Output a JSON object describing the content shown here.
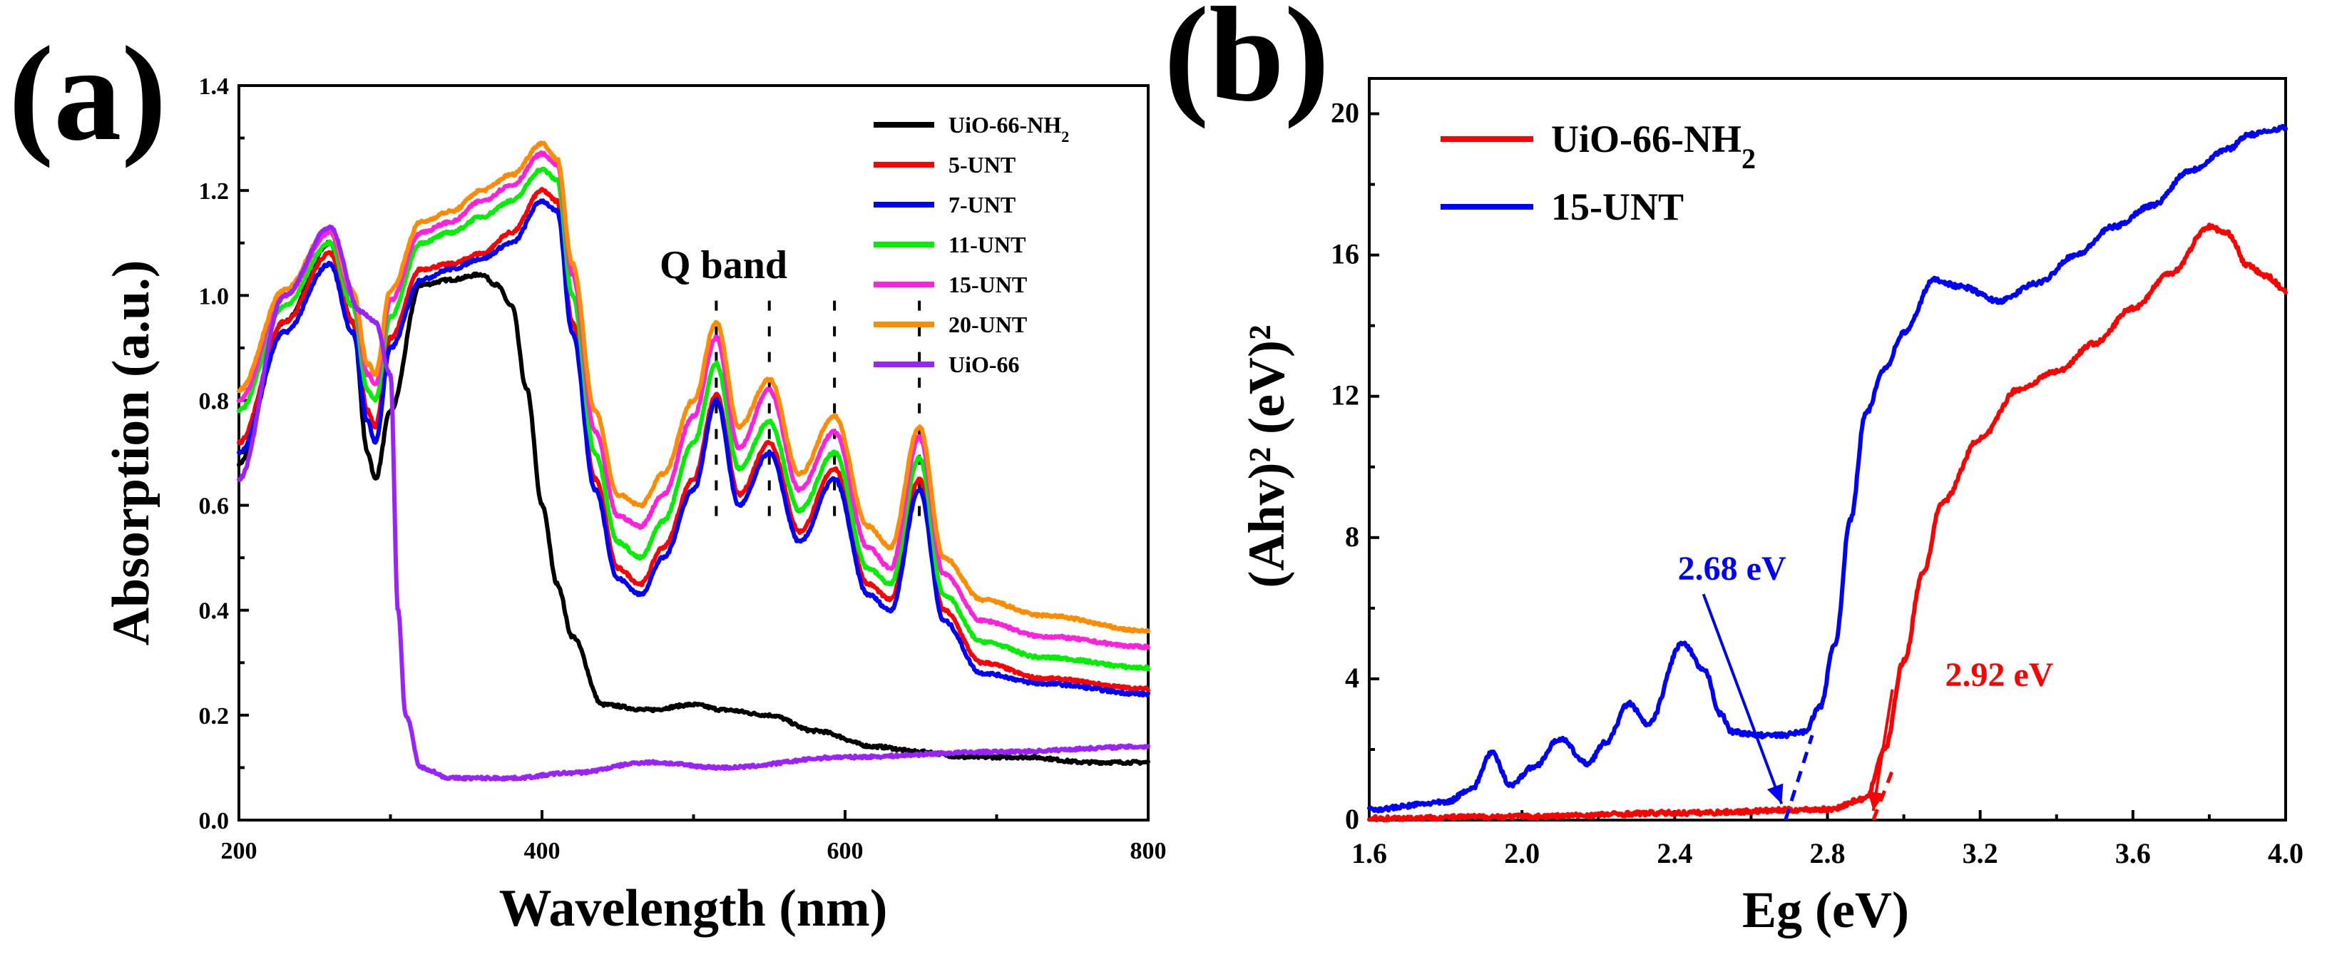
{
  "chart_data": [
    {
      "panel": "(a)",
      "type": "line",
      "xlabel": "Wavelength (nm)",
      "ylabel": "Absorption (a.u.)",
      "xlim": [
        200,
        800
      ],
      "ylim": [
        0.0,
        1.4
      ],
      "xticks": [
        "200",
        "400",
        "600",
        "800"
      ],
      "yticks": [
        "0.0",
        "0.2",
        "0.4",
        "0.6",
        "0.8",
        "1.0",
        "1.2",
        "1.4"
      ],
      "legend_position": "top-right",
      "annotations": [
        {
          "text": "Q band",
          "x": 518,
          "y": 1.05
        }
      ],
      "q_band_markers": [
        515,
        550,
        593,
        649
      ],
      "series": [
        {
          "name": "UiO-66-NH",
          "subscript": "2",
          "color": "#000000",
          "x": [
            200,
            230,
            260,
            275,
            285,
            290,
            300,
            320,
            340,
            360,
            370,
            380,
            390,
            400,
            410,
            420,
            440,
            470,
            500,
            520,
            550,
            580,
            620,
            650,
            680,
            720,
            760,
            800
          ],
          "y": [
            0.68,
            0.95,
            1.1,
            0.95,
            0.7,
            0.65,
            0.78,
            1.02,
            1.03,
            1.04,
            1.02,
            0.98,
            0.82,
            0.6,
            0.45,
            0.35,
            0.22,
            0.21,
            0.22,
            0.21,
            0.2,
            0.17,
            0.14,
            0.13,
            0.12,
            0.12,
            0.11,
            0.11
          ]
        },
        {
          "name": "5-UNT",
          "color": "#ff0000",
          "x": [
            200,
            230,
            260,
            275,
            285,
            290,
            300,
            320,
            340,
            360,
            380,
            400,
            410,
            420,
            435,
            450,
            465,
            480,
            500,
            515,
            530,
            550,
            570,
            593,
            615,
            630,
            649,
            665,
            690,
            730,
            800
          ],
          "y": [
            0.72,
            0.95,
            1.08,
            0.95,
            0.78,
            0.75,
            0.92,
            1.05,
            1.06,
            1.08,
            1.12,
            1.2,
            1.18,
            0.95,
            0.65,
            0.48,
            0.45,
            0.52,
            0.65,
            0.81,
            0.62,
            0.72,
            0.55,
            0.67,
            0.45,
            0.42,
            0.65,
            0.4,
            0.3,
            0.27,
            0.25
          ]
        },
        {
          "name": "7-UNT",
          "color": "#0000ff",
          "x": [
            200,
            230,
            260,
            275,
            285,
            290,
            300,
            320,
            340,
            360,
            380,
            400,
            410,
            420,
            435,
            450,
            465,
            480,
            500,
            515,
            530,
            550,
            570,
            593,
            615,
            630,
            649,
            665,
            690,
            730,
            800
          ],
          "y": [
            0.7,
            0.93,
            1.06,
            0.93,
            0.76,
            0.72,
            0.9,
            1.03,
            1.05,
            1.07,
            1.1,
            1.18,
            1.16,
            0.93,
            0.63,
            0.46,
            0.43,
            0.5,
            0.63,
            0.8,
            0.6,
            0.7,
            0.53,
            0.65,
            0.43,
            0.4,
            0.63,
            0.38,
            0.28,
            0.26,
            0.24
          ]
        },
        {
          "name": "11-UNT",
          "color": "#00ee00",
          "x": [
            200,
            230,
            260,
            275,
            285,
            290,
            300,
            320,
            340,
            360,
            380,
            400,
            410,
            420,
            435,
            450,
            465,
            480,
            500,
            515,
            530,
            550,
            570,
            593,
            615,
            630,
            649,
            665,
            690,
            730,
            800
          ],
          "y": [
            0.78,
            0.98,
            1.1,
            0.98,
            0.82,
            0.8,
            0.96,
            1.1,
            1.12,
            1.15,
            1.18,
            1.24,
            1.22,
            1.0,
            0.7,
            0.53,
            0.5,
            0.57,
            0.72,
            0.87,
            0.67,
            0.76,
            0.59,
            0.7,
            0.48,
            0.45,
            0.69,
            0.43,
            0.34,
            0.31,
            0.29
          ]
        },
        {
          "name": "15-UNT",
          "color": "#ff22dd",
          "x": [
            200,
            230,
            260,
            275,
            285,
            290,
            300,
            320,
            340,
            360,
            380,
            400,
            410,
            420,
            435,
            450,
            465,
            480,
            500,
            515,
            530,
            550,
            570,
            593,
            615,
            630,
            649,
            665,
            690,
            730,
            800
          ],
          "y": [
            0.8,
            1.0,
            1.12,
            1.0,
            0.85,
            0.83,
            0.99,
            1.12,
            1.14,
            1.18,
            1.21,
            1.27,
            1.25,
            1.04,
            0.74,
            0.58,
            0.56,
            0.62,
            0.77,
            0.92,
            0.71,
            0.82,
            0.63,
            0.74,
            0.52,
            0.48,
            0.73,
            0.47,
            0.38,
            0.35,
            0.33
          ]
        },
        {
          "name": "20-UNT",
          "color": "#ff8c00",
          "x": [
            200,
            230,
            260,
            275,
            285,
            290,
            300,
            320,
            340,
            360,
            380,
            400,
            410,
            420,
            435,
            450,
            465,
            480,
            500,
            515,
            530,
            550,
            570,
            593,
            615,
            630,
            649,
            665,
            690,
            730,
            800
          ],
          "y": [
            0.82,
            1.01,
            1.13,
            1.01,
            0.87,
            0.85,
            1.01,
            1.14,
            1.16,
            1.2,
            1.23,
            1.29,
            1.26,
            1.06,
            0.78,
            0.62,
            0.6,
            0.66,
            0.8,
            0.95,
            0.75,
            0.84,
            0.66,
            0.77,
            0.56,
            0.52,
            0.75,
            0.5,
            0.42,
            0.39,
            0.36
          ]
        },
        {
          "name": "UiO-66",
          "color": "#9922ff",
          "x": [
            200,
            230,
            260,
            280,
            290,
            300,
            305,
            310,
            320,
            340,
            380,
            420,
            470,
            520,
            600,
            700,
            800
          ],
          "y": [
            0.65,
            1.0,
            1.13,
            0.97,
            0.95,
            0.85,
            0.4,
            0.2,
            0.1,
            0.08,
            0.08,
            0.09,
            0.11,
            0.1,
            0.12,
            0.13,
            0.14
          ]
        }
      ]
    },
    {
      "panel": "(b)",
      "type": "line",
      "xlabel": "Eg (eV)",
      "ylabel": "(Ahv)² (eV)²",
      "xlim": [
        1.6,
        4.0
      ],
      "ylim": [
        0,
        21
      ],
      "xticks": [
        "1.6",
        "2.0",
        "2.4",
        "2.8",
        "3.2",
        "3.6",
        "4.0"
      ],
      "yticks": [
        "0",
        "4",
        "8",
        "12",
        "16",
        "20"
      ],
      "legend_position": "top-left",
      "annotations": [
        {
          "text": "2.68 eV",
          "color": "#0000ff",
          "x": 2.55,
          "y": 6.8,
          "arrow_to": [
            2.68,
            0.3
          ]
        },
        {
          "text": "2.92 eV",
          "color": "#ff0000",
          "x": 3.25,
          "y": 3.8,
          "arrow_to": [
            2.92,
            0.1
          ]
        }
      ],
      "series": [
        {
          "name": "UiO-66-NH",
          "subscript": "2",
          "color": "#ff0000",
          "x": [
            1.6,
            2.0,
            2.4,
            2.8,
            2.9,
            2.95,
            3.0,
            3.05,
            3.1,
            3.2,
            3.3,
            3.4,
            3.5,
            3.6,
            3.7,
            3.8,
            3.85,
            3.9,
            3.95,
            4.0
          ],
          "y": [
            0.05,
            0.1,
            0.2,
            0.3,
            0.6,
            2.0,
            4.5,
            7.0,
            9.0,
            10.8,
            12.2,
            12.7,
            13.5,
            14.5,
            15.5,
            16.8,
            16.6,
            15.7,
            15.4,
            15.0
          ]
        },
        {
          "name": "15-UNT",
          "color": "#0000ff",
          "x": [
            1.6,
            1.8,
            1.87,
            1.92,
            1.97,
            2.03,
            2.1,
            2.17,
            2.22,
            2.28,
            2.33,
            2.42,
            2.48,
            2.52,
            2.55,
            2.62,
            2.68,
            2.74,
            2.78,
            2.82,
            2.86,
            2.9,
            2.95,
            3.0,
            3.08,
            3.15,
            3.25,
            3.35,
            3.45,
            3.55,
            3.65,
            3.75,
            3.85,
            3.9,
            4.0
          ],
          "y": [
            0.3,
            0.5,
            0.9,
            1.9,
            1.0,
            1.5,
            2.3,
            1.6,
            2.2,
            3.3,
            2.7,
            5.0,
            4.2,
            3.0,
            2.5,
            2.4,
            2.4,
            2.5,
            3.2,
            5.0,
            8.5,
            11.5,
            12.8,
            13.8,
            15.3,
            15.1,
            14.7,
            15.2,
            16.0,
            16.8,
            17.4,
            18.4,
            19.0,
            19.4,
            19.6
          ]
        }
      ]
    }
  ]
}
